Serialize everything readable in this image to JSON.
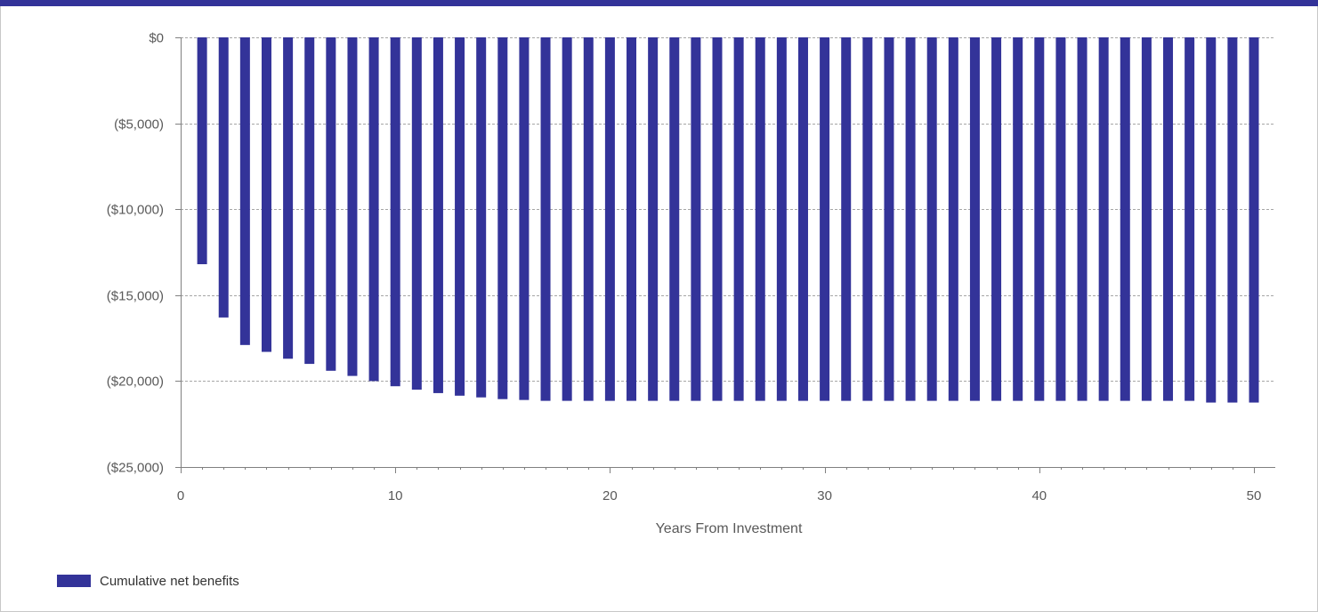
{
  "colors": {
    "bar": "#333399",
    "top_bar": "#333399",
    "grid": "#a6a6a6",
    "axis": "#808080"
  },
  "chart_data": {
    "type": "bar",
    "xlabel": "Years From Investment",
    "ylabel": "",
    "xlim": [
      0,
      51
    ],
    "ylim": [
      -25000,
      0
    ],
    "x_ticks": [
      0,
      10,
      20,
      30,
      40,
      50
    ],
    "x_tick_labels": [
      "0",
      "10",
      "20",
      "30",
      "40",
      "50"
    ],
    "y_ticks": [
      0,
      -5000,
      -10000,
      -15000,
      -20000,
      -25000
    ],
    "y_tick_labels": [
      "$0",
      "($5,000)",
      "($10,000)",
      "($15,000)",
      "($20,000)",
      "($25,000)"
    ],
    "grid": "horizontal-dashed",
    "legend_position": "bottom-left",
    "x": [
      1,
      2,
      3,
      4,
      5,
      6,
      7,
      8,
      9,
      10,
      11,
      12,
      13,
      14,
      15,
      16,
      17,
      18,
      19,
      20,
      21,
      22,
      23,
      24,
      25,
      26,
      27,
      28,
      29,
      30,
      31,
      32,
      33,
      34,
      35,
      36,
      37,
      38,
      39,
      40,
      41,
      42,
      43,
      44,
      45,
      46,
      47,
      48,
      49,
      50
    ],
    "series": [
      {
        "name": "Cumulative net benefits",
        "values": [
          -13200,
          -16300,
          -17900,
          -18300,
          -18700,
          -19000,
          -19400,
          -19700,
          -20000,
          -20300,
          -20500,
          -20700,
          -20850,
          -20950,
          -21050,
          -21100,
          -21150,
          -21150,
          -21150,
          -21150,
          -21150,
          -21150,
          -21150,
          -21150,
          -21150,
          -21150,
          -21150,
          -21150,
          -21150,
          -21150,
          -21150,
          -21150,
          -21150,
          -21150,
          -21150,
          -21150,
          -21150,
          -21150,
          -21150,
          -21150,
          -21150,
          -21150,
          -21150,
          -21150,
          -21150,
          -21150,
          -21150,
          -21250,
          -21250,
          -21250
        ]
      }
    ]
  },
  "legend": {
    "label": "Cumulative net benefits"
  }
}
